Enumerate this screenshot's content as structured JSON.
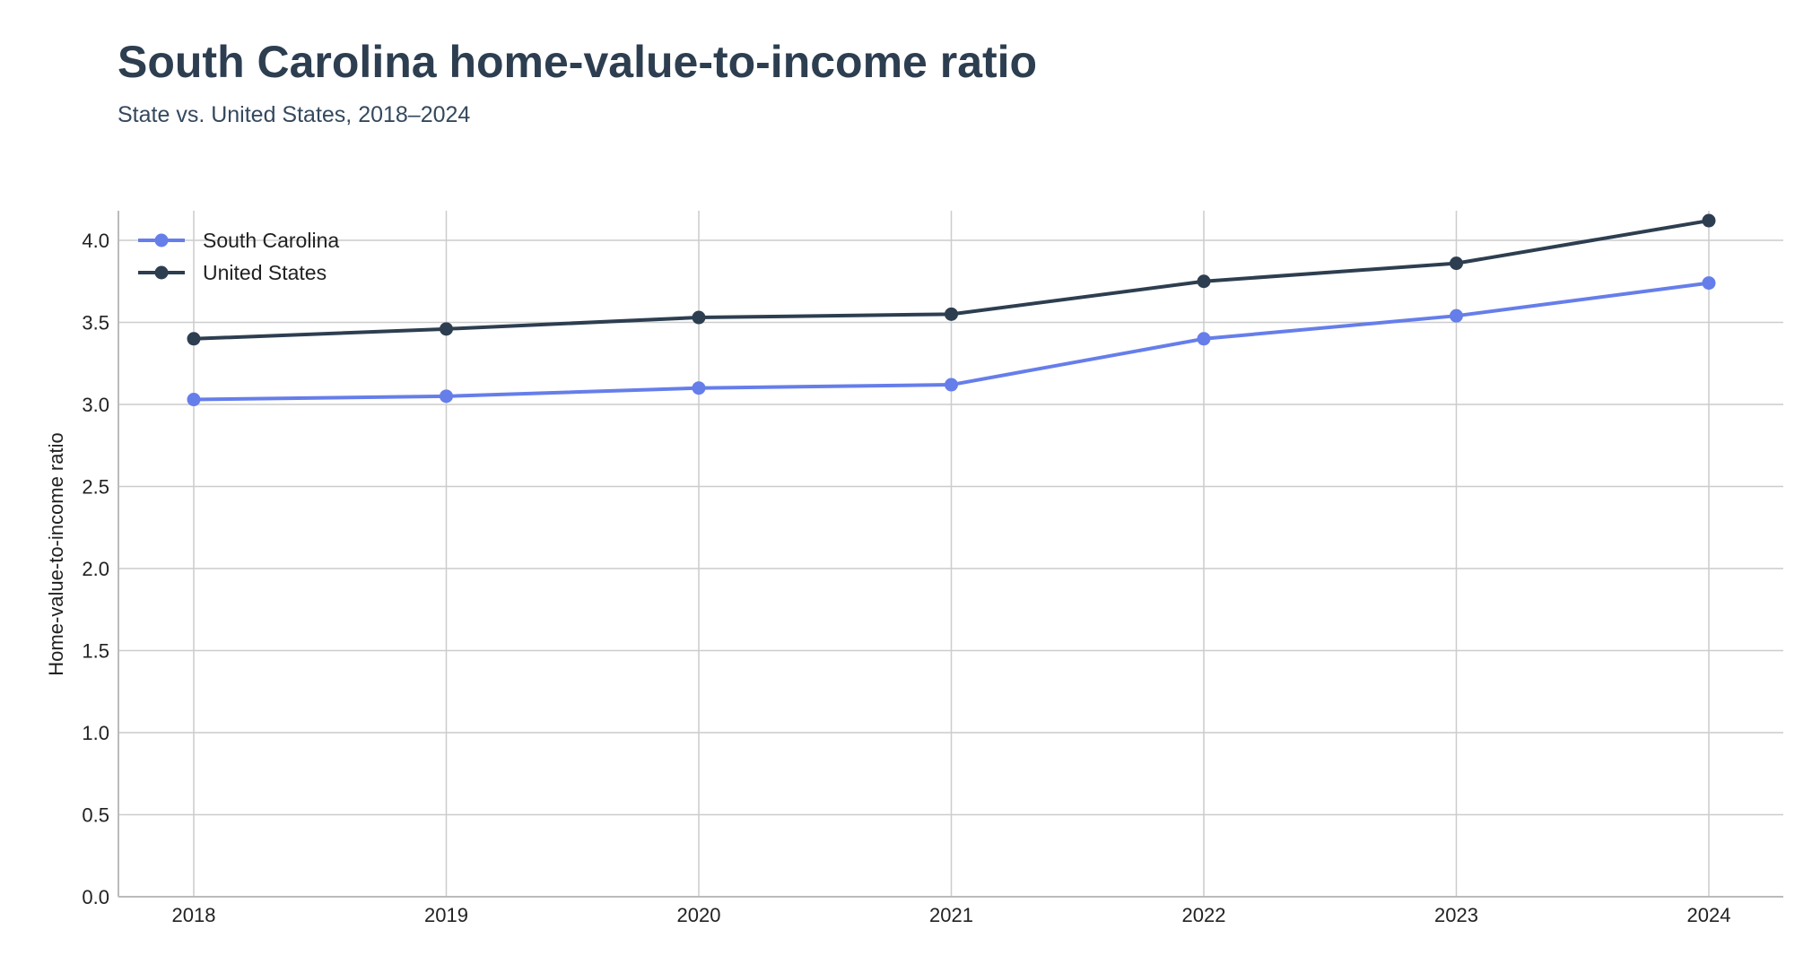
{
  "chart_data": {
    "type": "line",
    "title": "South Carolina home-value-to-income ratio",
    "subtitle": "State vs. United States, 2018–2024",
    "xlabel": "",
    "ylabel": "Home-value-to-income ratio",
    "x": [
      "2018",
      "2019",
      "2020",
      "2021",
      "2022",
      "2023",
      "2024"
    ],
    "ylim": [
      0,
      4.2
    ],
    "yticks": [
      "0.0",
      "0.5",
      "1.0",
      "1.5",
      "2.0",
      "2.5",
      "3.0",
      "3.5",
      "4.0"
    ],
    "grid": true,
    "legend_position": "top-left",
    "series": [
      {
        "name": "South Carolina",
        "color": "#667eea",
        "values": [
          3.03,
          3.05,
          3.1,
          3.12,
          3.4,
          3.54,
          3.74
        ]
      },
      {
        "name": "United States",
        "color": "#2d3e50",
        "values": [
          3.4,
          3.46,
          3.53,
          3.55,
          3.75,
          3.86,
          4.12
        ]
      }
    ]
  }
}
